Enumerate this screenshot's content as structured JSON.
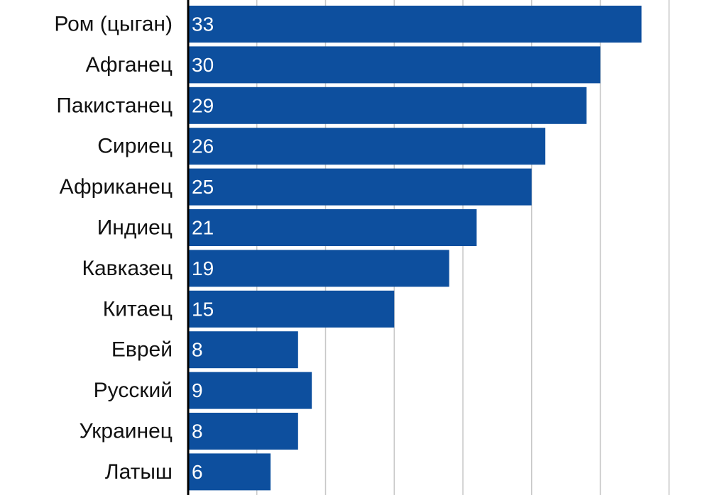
{
  "chart_data": {
    "type": "bar",
    "orientation": "horizontal",
    "title": "",
    "xlabel": "",
    "ylabel": "",
    "xlim": [
      0,
      35
    ],
    "grid": true,
    "legend": "none",
    "bar_color": "#0d4f9e",
    "grid_color": "#c8c8c8",
    "axis_color": "#000000",
    "categories": [
      "Ром (цыган)",
      "Афганец",
      "Пакистанец",
      "Сириец",
      "Африканец",
      "Индиец",
      "Кавказец",
      "Китаец",
      "Еврей",
      "Русский",
      "Украинец",
      "Латыш"
    ],
    "values": [
      33,
      30,
      29,
      26,
      25,
      21,
      19,
      15,
      8,
      9,
      8,
      6
    ]
  }
}
